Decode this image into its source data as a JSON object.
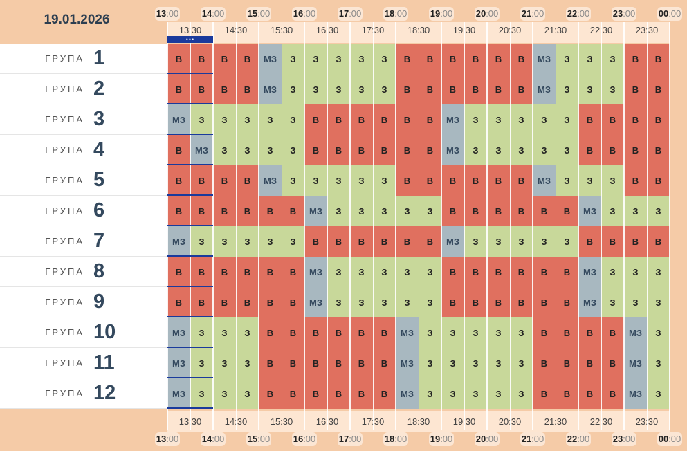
{
  "date": "19.01.2026",
  "hours": [
    {
      "h": "13",
      "m": ":00"
    },
    {
      "h": "14",
      "m": ":00"
    },
    {
      "h": "15",
      "m": ":00"
    },
    {
      "h": "16",
      "m": ":00"
    },
    {
      "h": "17",
      "m": ":00"
    },
    {
      "h": "18",
      "m": ":00"
    },
    {
      "h": "19",
      "m": ":00"
    },
    {
      "h": "20",
      "m": ":00"
    },
    {
      "h": "21",
      "m": ":00"
    },
    {
      "h": "22",
      "m": ":00"
    },
    {
      "h": "23",
      "m": ":00"
    },
    {
      "h": "00",
      "m": ":00"
    }
  ],
  "half_hours": [
    "13:30",
    "14:30",
    "15:30",
    "16:30",
    "17:30",
    "18:30",
    "19:30",
    "20:30",
    "21:30",
    "22:30",
    "23:30"
  ],
  "group_word": "ГРУПА",
  "now_marker": "•••",
  "legend": {
    "В": "v",
    "З": "z",
    "МЗ": "mz"
  },
  "colors": {
    "v": "#e0705f",
    "z": "#c8d89a",
    "mz": "#a8b8c0",
    "marker": "#1a3a9c"
  },
  "groups": [
    {
      "num": "1",
      "cells": [
        "В",
        "В",
        "В",
        "В",
        "МЗ",
        "З",
        "З",
        "З",
        "З",
        "З",
        "В",
        "В",
        "В",
        "В",
        "В",
        "В",
        "МЗ",
        "З",
        "З",
        "З",
        "В",
        "В"
      ]
    },
    {
      "num": "2",
      "cells": [
        "В",
        "В",
        "В",
        "В",
        "МЗ",
        "З",
        "З",
        "З",
        "З",
        "З",
        "В",
        "В",
        "В",
        "В",
        "В",
        "В",
        "МЗ",
        "З",
        "З",
        "З",
        "В",
        "В"
      ]
    },
    {
      "num": "3",
      "cells": [
        "МЗ",
        "З",
        "З",
        "З",
        "З",
        "З",
        "В",
        "В",
        "В",
        "В",
        "В",
        "В",
        "МЗ",
        "З",
        "З",
        "З",
        "З",
        "З",
        "В",
        "В",
        "В",
        "В"
      ]
    },
    {
      "num": "4",
      "cells": [
        "В",
        "МЗ",
        "З",
        "З",
        "З",
        "З",
        "В",
        "В",
        "В",
        "В",
        "В",
        "В",
        "МЗ",
        "З",
        "З",
        "З",
        "З",
        "З",
        "В",
        "В",
        "В",
        "В"
      ]
    },
    {
      "num": "5",
      "cells": [
        "В",
        "В",
        "В",
        "В",
        "МЗ",
        "З",
        "З",
        "З",
        "З",
        "З",
        "В",
        "В",
        "В",
        "В",
        "В",
        "В",
        "МЗ",
        "З",
        "З",
        "З",
        "В",
        "В"
      ]
    },
    {
      "num": "6",
      "cells": [
        "В",
        "В",
        "В",
        "В",
        "В",
        "В",
        "МЗ",
        "З",
        "З",
        "З",
        "З",
        "З",
        "В",
        "В",
        "В",
        "В",
        "В",
        "В",
        "МЗ",
        "З",
        "З",
        "З"
      ]
    },
    {
      "num": "7",
      "cells": [
        "МЗ",
        "З",
        "З",
        "З",
        "З",
        "З",
        "В",
        "В",
        "В",
        "В",
        "В",
        "В",
        "МЗ",
        "З",
        "З",
        "З",
        "З",
        "З",
        "В",
        "В",
        "В",
        "В"
      ]
    },
    {
      "num": "8",
      "cells": [
        "В",
        "В",
        "В",
        "В",
        "В",
        "В",
        "МЗ",
        "З",
        "З",
        "З",
        "З",
        "З",
        "В",
        "В",
        "В",
        "В",
        "В",
        "В",
        "МЗ",
        "З",
        "З",
        "З"
      ]
    },
    {
      "num": "9",
      "cells": [
        "В",
        "В",
        "В",
        "В",
        "В",
        "В",
        "МЗ",
        "З",
        "З",
        "З",
        "З",
        "З",
        "В",
        "В",
        "В",
        "В",
        "В",
        "В",
        "МЗ",
        "З",
        "З",
        "З"
      ]
    },
    {
      "num": "10",
      "cells": [
        "МЗ",
        "З",
        "З",
        "З",
        "В",
        "В",
        "В",
        "В",
        "В",
        "В",
        "МЗ",
        "З",
        "З",
        "З",
        "З",
        "З",
        "В",
        "В",
        "В",
        "В",
        "МЗ",
        "З"
      ]
    },
    {
      "num": "11",
      "cells": [
        "МЗ",
        "З",
        "З",
        "З",
        "В",
        "В",
        "В",
        "В",
        "В",
        "В",
        "МЗ",
        "З",
        "З",
        "З",
        "З",
        "З",
        "В",
        "В",
        "В",
        "В",
        "МЗ",
        "З"
      ]
    },
    {
      "num": "12",
      "cells": [
        "МЗ",
        "З",
        "З",
        "З",
        "В",
        "В",
        "В",
        "В",
        "В",
        "В",
        "МЗ",
        "З",
        "З",
        "З",
        "З",
        "З",
        "В",
        "В",
        "В",
        "В",
        "МЗ",
        "З"
      ]
    }
  ]
}
